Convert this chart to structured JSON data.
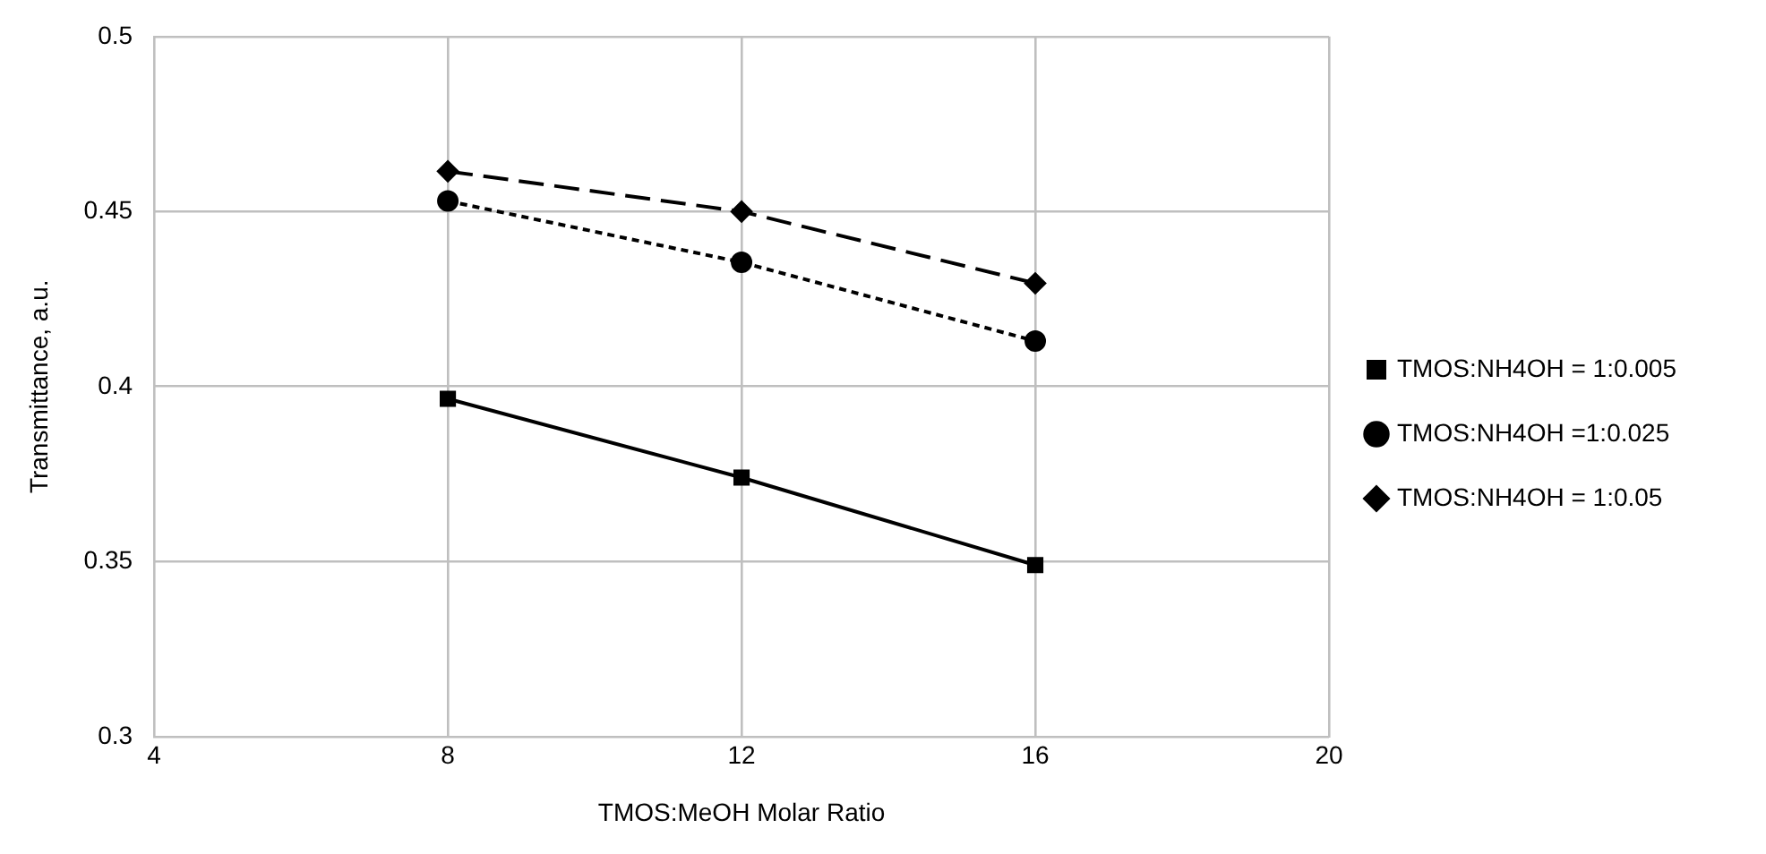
{
  "chart_data": {
    "type": "line",
    "xlabel": "TMOS:MeOH Molar Ratio",
    "ylabel": "Transmittance, a.u.",
    "x": [
      8,
      12,
      16
    ],
    "series": [
      {
        "name": "TMOS:NH4OH = 1:0.005",
        "color": "#000000",
        "values": [
          0.3965,
          0.374,
          0.349
        ],
        "marker": "square",
        "line_style": "solid"
      },
      {
        "name": "TMOS:NH4OH =1:0.025",
        "color": "#000000",
        "values": [
          0.453,
          0.4355,
          0.413
        ],
        "marker": "circle",
        "line_style": "dotted"
      },
      {
        "name": "TMOS:NH4OH = 1:0.05",
        "color": "#000000",
        "values": [
          0.4615,
          0.45,
          0.4295
        ],
        "marker": "diamond",
        "line_style": "dashed"
      }
    ],
    "xlim": [
      4,
      20
    ],
    "xticks": [
      4,
      8,
      12,
      16,
      20
    ],
    "ylim": [
      0.3,
      0.5
    ],
    "yticks": [
      0.3,
      0.35,
      0.4,
      0.45,
      0.5
    ],
    "grid": true,
    "legend": "right"
  }
}
